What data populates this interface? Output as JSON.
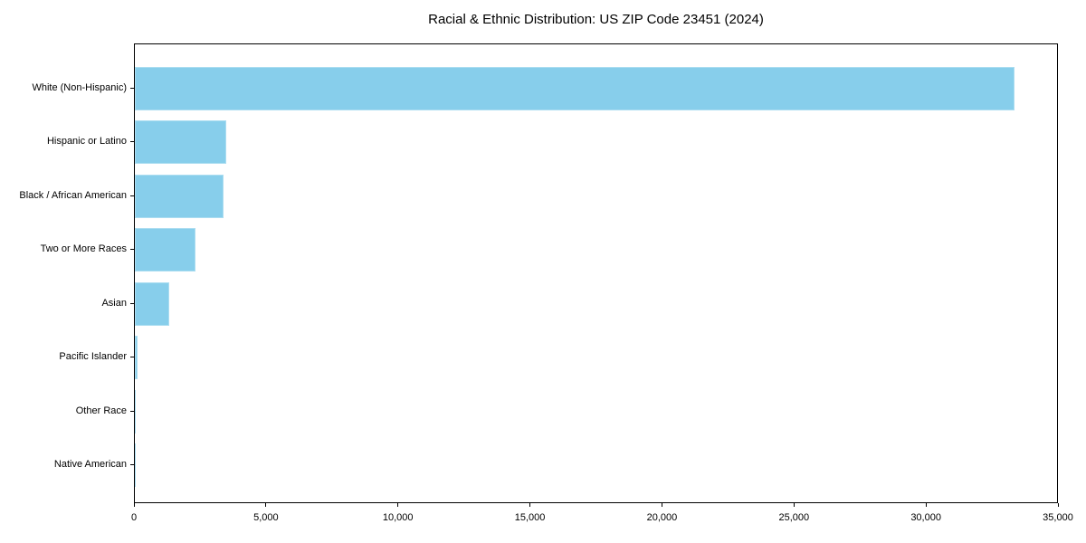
{
  "title": "Racial & Ethnic Distribution: US ZIP Code 23451 (2024)",
  "colors": {
    "bar": "#87CEEB",
    "axis": "#000000",
    "text": "#000000",
    "background": "#FFFFFF"
  },
  "chart_data": {
    "type": "bar",
    "orientation": "horizontal",
    "title": "Racial & Ethnic Distribution: US ZIP Code 23451 (2024)",
    "categories": [
      "White (Non-Hispanic)",
      "Hispanic or Latino",
      "Black / African American",
      "Two or More Races",
      "Asian",
      "Pacific Islander",
      "Other Race",
      "Native American"
    ],
    "values": [
      33400,
      3460,
      3380,
      2290,
      1320,
      100,
      35,
      25
    ],
    "xlabel": "",
    "ylabel": "",
    "xlim": [
      0,
      35000
    ],
    "x_ticks": [
      0,
      5000,
      10000,
      15000,
      20000,
      25000,
      30000,
      35000
    ],
    "x_tick_labels": [
      "0",
      "5,000",
      "10,000",
      "15,000",
      "20,000",
      "25,000",
      "30,000",
      "35,000"
    ],
    "grid": false,
    "legend": "none",
    "bar_color": "#87CEEB"
  }
}
